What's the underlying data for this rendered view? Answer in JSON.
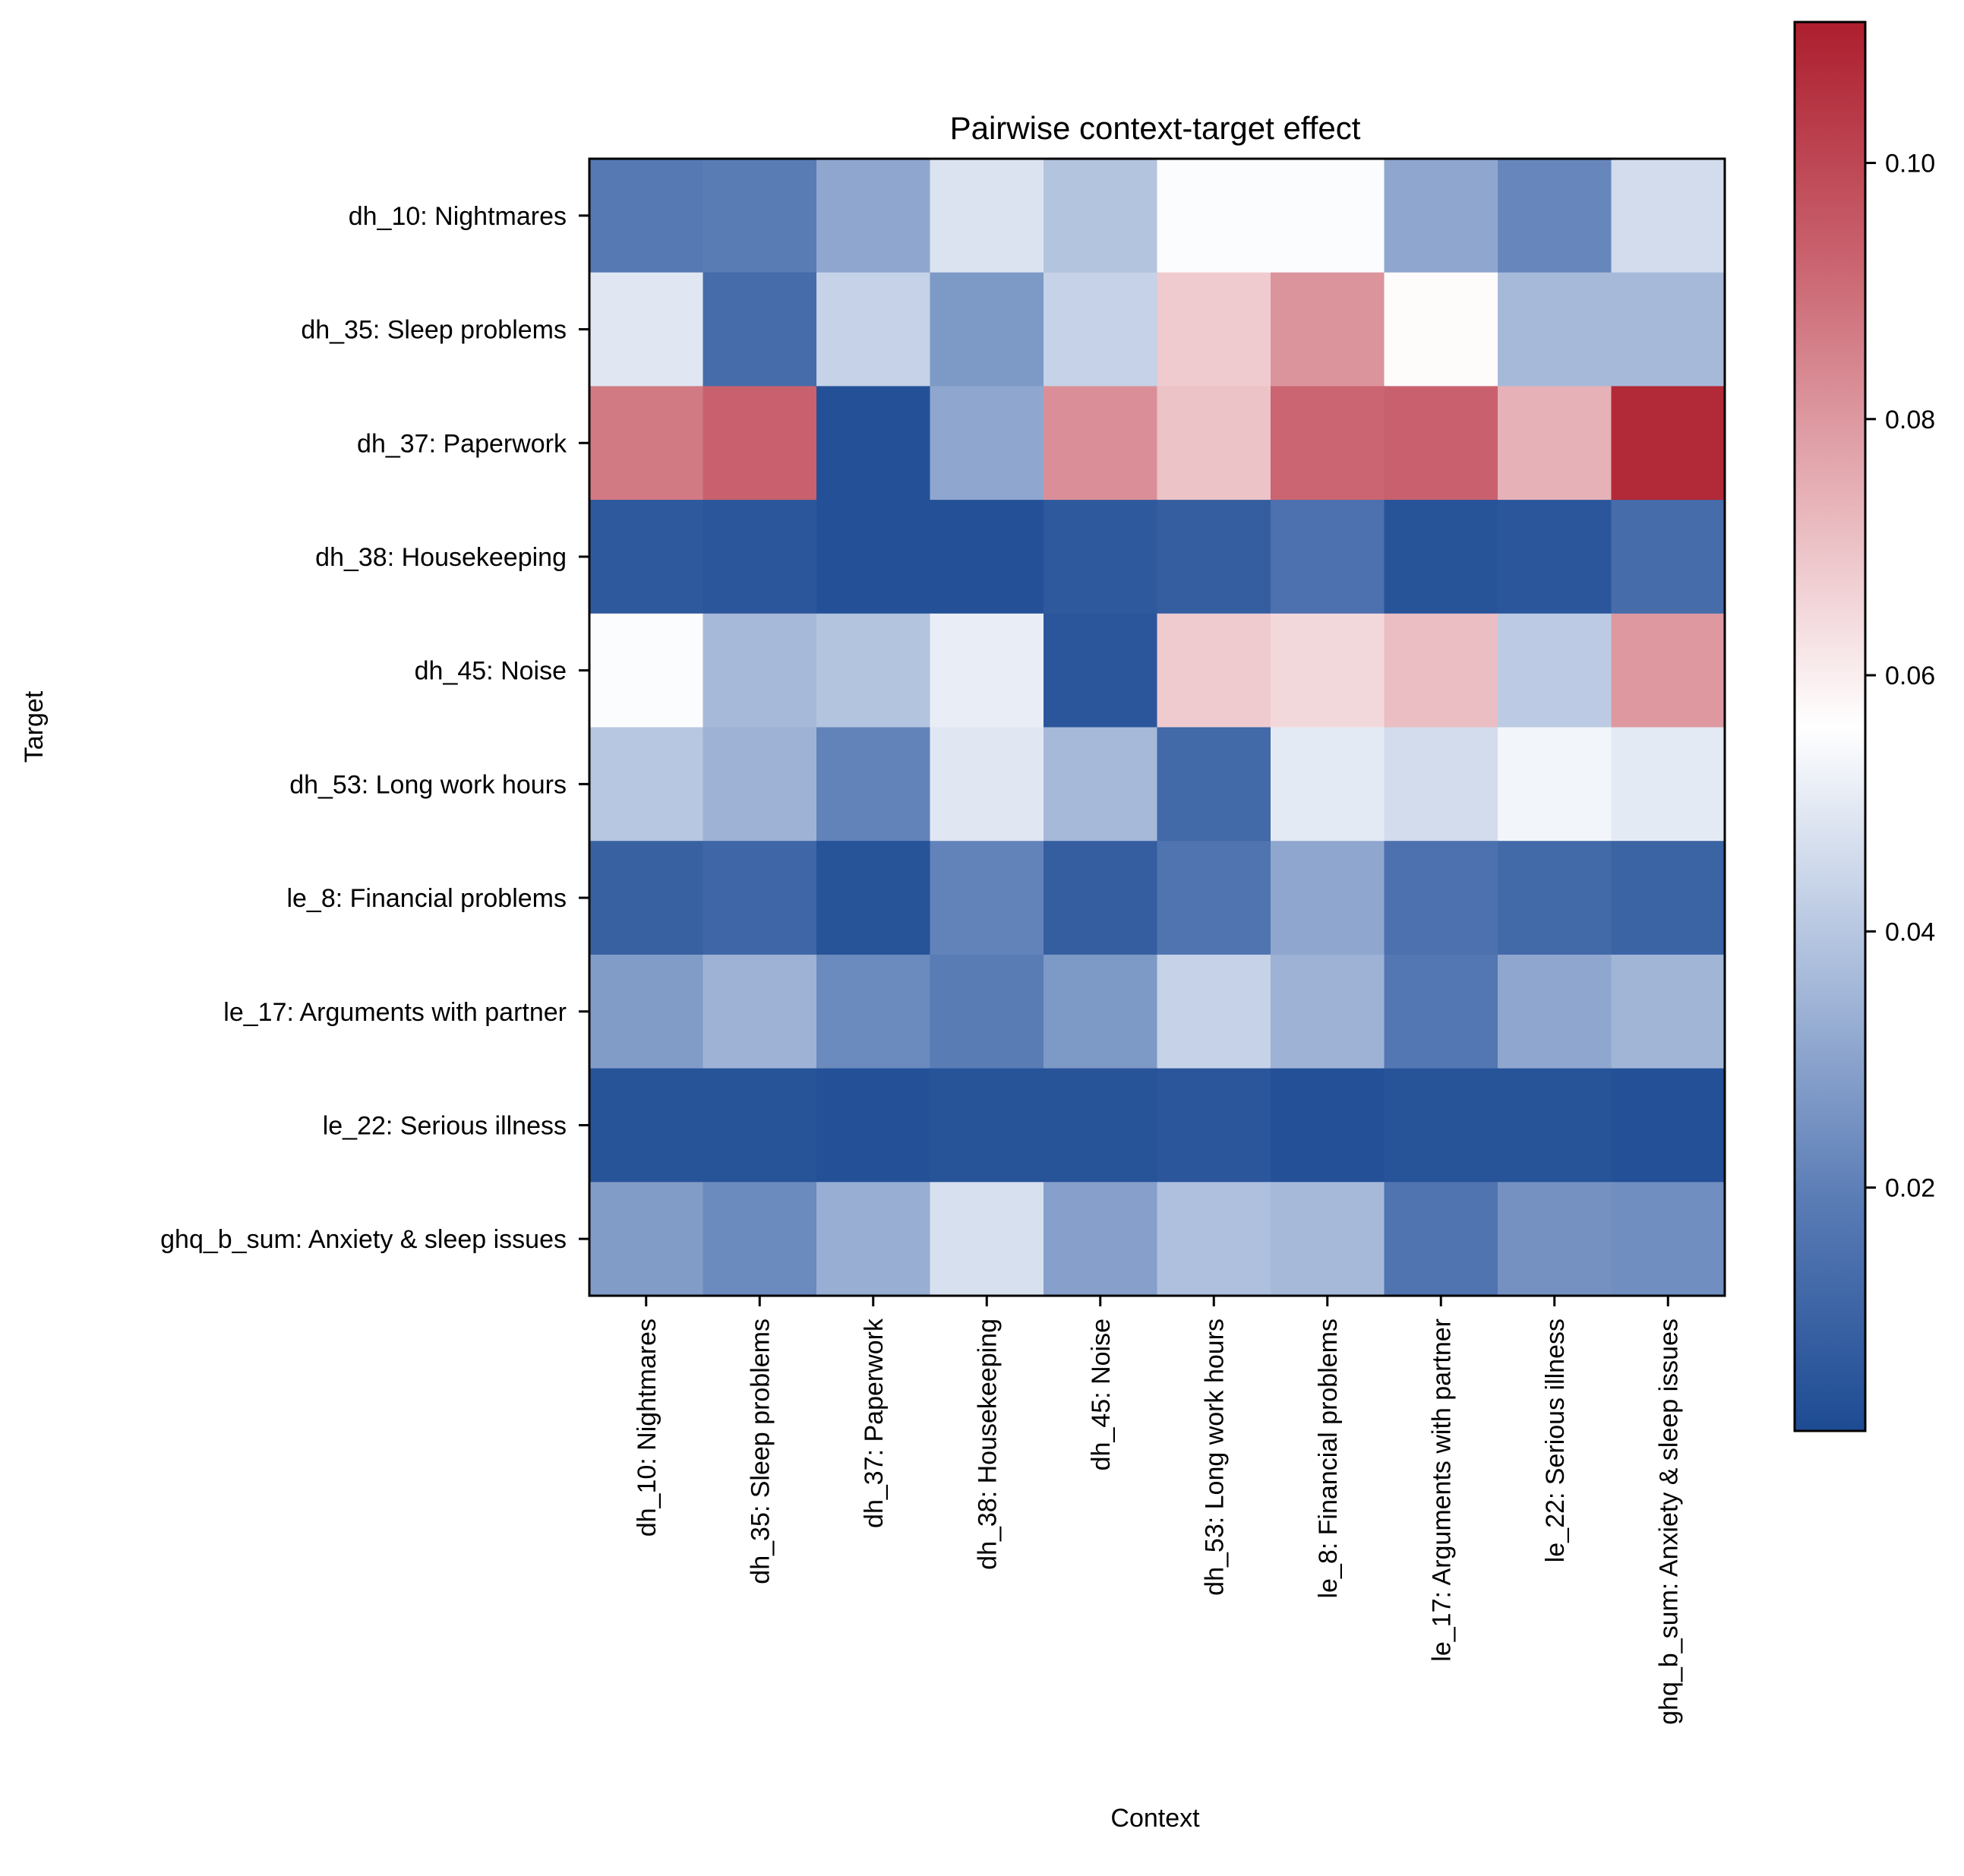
{
  "chart_data": {
    "type": "heatmap",
    "title": "Pairwise context-target effect",
    "xlabel": "Context",
    "ylabel": "Target",
    "x_categories": [
      "dh_10: Nightmares",
      "dh_35: Sleep problems",
      "dh_37: Paperwork",
      "dh_38: Housekeeping",
      "dh_45: Noise",
      "dh_53: Long work hours",
      "le_8: Financial problems",
      "le_17: Arguments with partner",
      "le_22: Serious illness",
      "ghq_b_sum: Anxiety & sleep issues"
    ],
    "y_categories": [
      "dh_10: Nightmares",
      "dh_35: Sleep problems",
      "dh_37: Paperwork",
      "dh_38: Housekeeping",
      "dh_45: Noise",
      "dh_53: Long work hours",
      "le_8: Financial problems",
      "le_17: Arguments with partner",
      "le_22: Serious illness",
      "ghq_b_sum: Anxiety & sleep issues"
    ],
    "values": [
      [
        0.018,
        0.019,
        0.031,
        0.048,
        0.039,
        0.055,
        0.055,
        0.031,
        0.022,
        0.046
      ],
      [
        0.049,
        0.013,
        0.043,
        0.027,
        0.043,
        0.068,
        0.081,
        0.057,
        0.036,
        0.036
      ],
      [
        0.087,
        0.093,
        0.003,
        0.031,
        0.082,
        0.07,
        0.092,
        0.093,
        0.074,
        0.108
      ],
      [
        0.006,
        0.005,
        0.003,
        0.003,
        0.006,
        0.008,
        0.015,
        0.004,
        0.005,
        0.013
      ],
      [
        0.055,
        0.036,
        0.039,
        0.051,
        0.005,
        0.068,
        0.065,
        0.071,
        0.041,
        0.08
      ],
      [
        0.04,
        0.034,
        0.021,
        0.049,
        0.036,
        0.012,
        0.05,
        0.046,
        0.053,
        0.05
      ],
      [
        0.009,
        0.011,
        0.004,
        0.021,
        0.008,
        0.016,
        0.031,
        0.015,
        0.012,
        0.01
      ],
      [
        0.028,
        0.034,
        0.023,
        0.019,
        0.027,
        0.043,
        0.034,
        0.017,
        0.031,
        0.035
      ],
      [
        0.004,
        0.004,
        0.003,
        0.004,
        0.004,
        0.005,
        0.003,
        0.004,
        0.004,
        0.003
      ],
      [
        0.028,
        0.023,
        0.033,
        0.047,
        0.029,
        0.038,
        0.036,
        0.016,
        0.025,
        0.024
      ]
    ],
    "colorbar": {
      "range": [
        0.001,
        0.111
      ],
      "ticks": [
        0.02,
        0.04,
        0.06,
        0.08,
        0.1
      ],
      "tick_labels": [
        "0.02",
        "0.04",
        "0.06",
        "0.08",
        "0.10"
      ],
      "colormap": [
        "#1d4b93",
        "#5b7db6",
        "#adbfdd",
        "#ffffff",
        "#e6b0b6",
        "#c9626e",
        "#ad1e2e"
      ]
    }
  }
}
